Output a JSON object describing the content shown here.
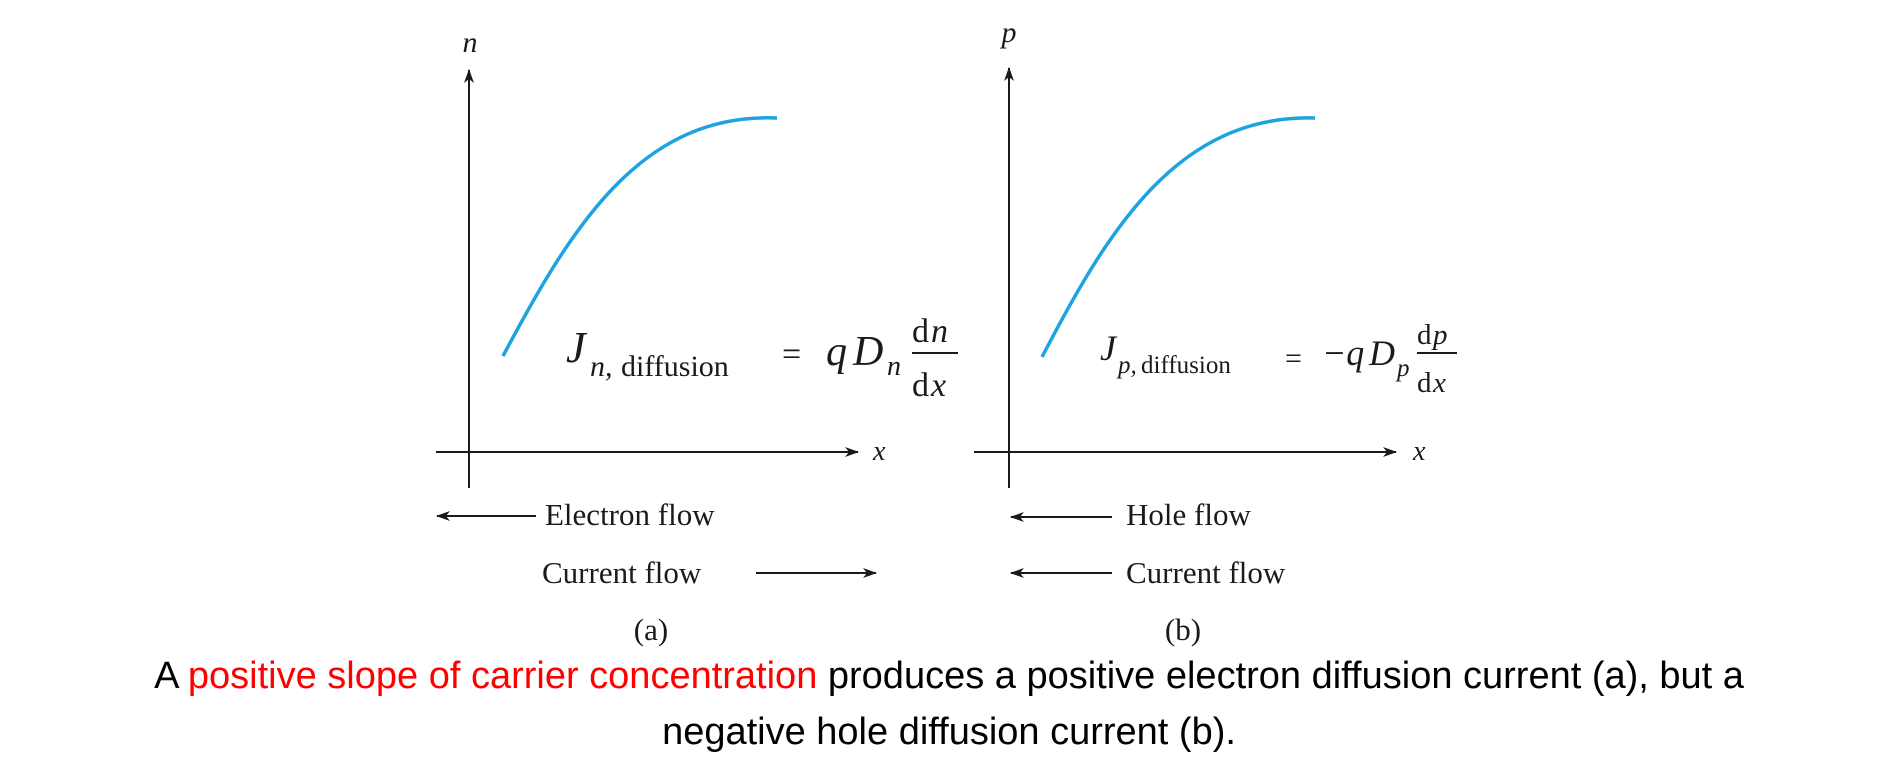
{
  "colors": {
    "curve": "#1ca3e0",
    "ink": "#1a1a1a",
    "highlight": "#ff0000"
  },
  "panel_a": {
    "y_axis_label": "n",
    "x_axis_label": "x",
    "eq_symbol": "J",
    "eq_subscript_var": "n,",
    "eq_subscript_text": "diffusion",
    "eq_rhs_q": "q",
    "eq_rhs_D": "D",
    "eq_rhs_sub": "n",
    "eq_num_d": "d",
    "eq_num_var": "n",
    "eq_den_d": "d",
    "eq_den_var": "x",
    "flow_top": "Electron flow",
    "flow_bottom": "Current flow",
    "panel_label": "(a)"
  },
  "panel_b": {
    "y_axis_label": "p",
    "x_axis_label": "x",
    "eq_symbol": "J",
    "eq_subscript_var": "p,",
    "eq_subscript_text": "diffusion",
    "eq_rhs_q": "−q",
    "eq_rhs_D": "D",
    "eq_rhs_sub": "p",
    "eq_num_d": "d",
    "eq_num_var": "p",
    "eq_den_d": "d",
    "eq_den_var": "x",
    "flow_top": "Hole flow",
    "flow_bottom": "Current flow",
    "panel_label": "(b)"
  },
  "caption": {
    "prefix": "A ",
    "highlight": "positive slope of carrier concentration",
    "line1_rest": " produces a positive electron diffusion current (a), but a",
    "line2": "negative hole diffusion current (b)."
  }
}
